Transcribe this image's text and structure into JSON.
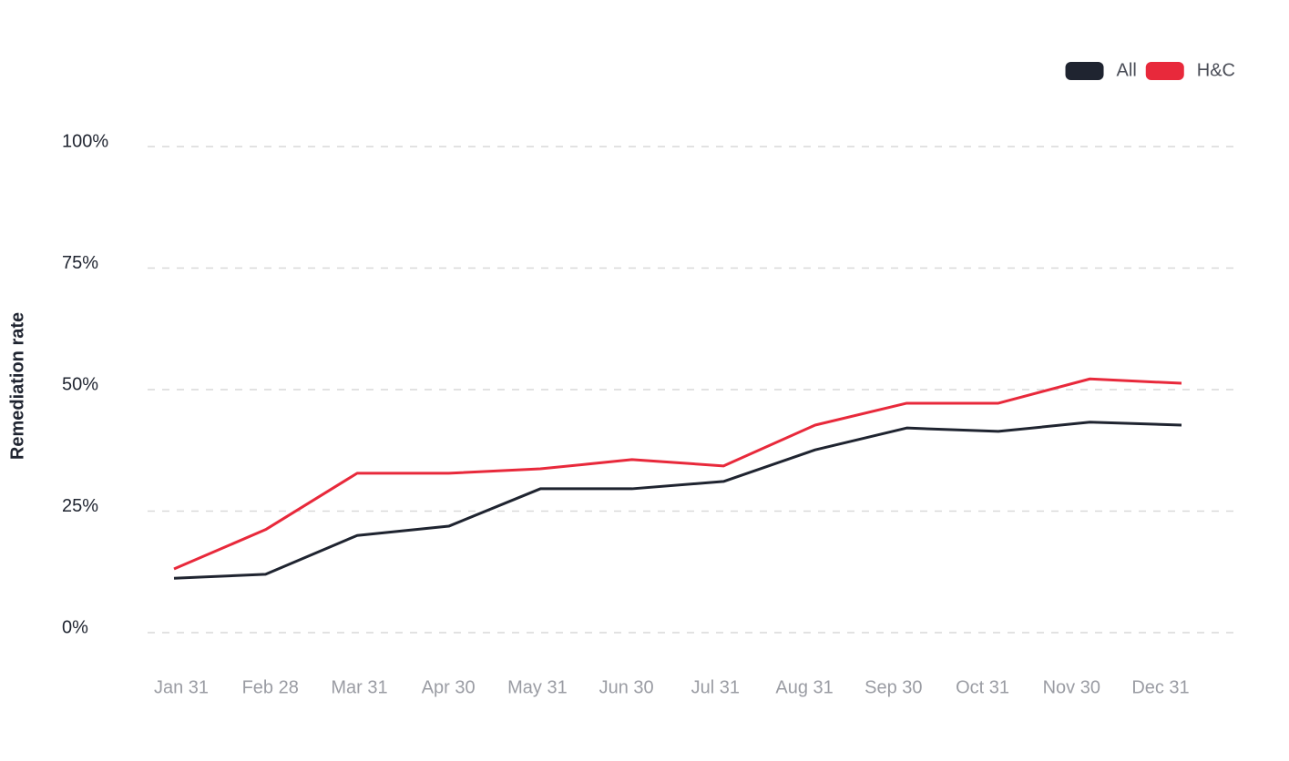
{
  "chart_data": {
    "type": "line",
    "y_label": "Remediation rate",
    "categories": [
      "Jan 31",
      "Feb 28",
      "Mar 31",
      "Apr 30",
      "May 31",
      "Jun 30",
      "Jul 31",
      "Aug 31",
      "Sep 30",
      "Oct 31",
      "Nov 30",
      "Dec 31"
    ],
    "series": [
      {
        "name": "All",
        "color": "#1f2430",
        "values": [
          11.2,
          12.0,
          20.0,
          21.9,
          29.6,
          29.6,
          31.1,
          37.6,
          42.1,
          41.4,
          43.3,
          42.7
        ]
      },
      {
        "name": "H&C",
        "color": "#e8293b",
        "values": [
          13.1,
          21.2,
          32.8,
          32.8,
          33.7,
          35.6,
          34.3,
          42.7,
          47.2,
          47.2,
          52.2,
          51.3
        ]
      }
    ],
    "ylim": [
      0,
      100
    ],
    "yticks": [
      {
        "value": 0,
        "label": "0%"
      },
      {
        "value": 25,
        "label": "25%"
      },
      {
        "value": 50,
        "label": "50%"
      },
      {
        "value": 75,
        "label": "75%"
      },
      {
        "value": 100,
        "label": "100%"
      }
    ],
    "grid": true,
    "legend": "top-right"
  }
}
